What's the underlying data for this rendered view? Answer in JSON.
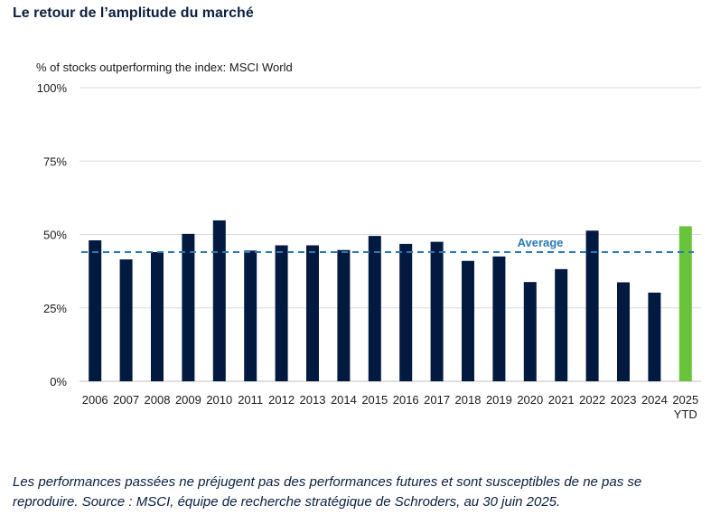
{
  "title": "Le retour de l’amplitude du marché",
  "footnote": "Les performances passées ne préjugent pas des performances futures et sont susceptibles de ne pas se reproduire. Source : MSCI, équipe de recherche stratégique de Schroders, au 30 juin 2025.",
  "chart_data": {
    "type": "bar",
    "ylabel": "% of stocks outperforming the index: MSCI World",
    "ylim": [
      0,
      100
    ],
    "yticks": [
      0,
      25,
      50,
      75,
      100
    ],
    "ytick_labels": [
      "0%",
      "25%",
      "50%",
      "75%",
      "100%"
    ],
    "grid": true,
    "categories": [
      {
        "line1": "2006",
        "line2": ""
      },
      {
        "line1": "2007",
        "line2": ""
      },
      {
        "line1": "2008",
        "line2": ""
      },
      {
        "line1": "2009",
        "line2": ""
      },
      {
        "line1": "2010",
        "line2": ""
      },
      {
        "line1": "2011",
        "line2": ""
      },
      {
        "line1": "2012",
        "line2": ""
      },
      {
        "line1": "2013",
        "line2": ""
      },
      {
        "line1": "2014",
        "line2": ""
      },
      {
        "line1": "2015",
        "line2": ""
      },
      {
        "line1": "2016",
        "line2": ""
      },
      {
        "line1": "2017",
        "line2": ""
      },
      {
        "line1": "2018",
        "line2": ""
      },
      {
        "line1": "2019",
        "line2": ""
      },
      {
        "line1": "2020",
        "line2": ""
      },
      {
        "line1": "2021",
        "line2": ""
      },
      {
        "line1": "2022",
        "line2": ""
      },
      {
        "line1": "2023",
        "line2": ""
      },
      {
        "line1": "2024",
        "line2": ""
      },
      {
        "line1": "2025",
        "line2": "YTD"
      }
    ],
    "values": [
      48,
      41.5,
      44,
      50.2,
      54.8,
      44.5,
      46.3,
      46.3,
      44.7,
      49.5,
      46.8,
      47.5,
      41,
      42.5,
      33.8,
      38.2,
      51.3,
      33.7,
      30.2,
      52.8
    ],
    "highlight_index": 19,
    "average": {
      "value": 44,
      "label": "Average"
    },
    "colors": {
      "bar": "#021a40",
      "highlight": "#69c43c",
      "average": "#2a7ab5",
      "grid": "#d9d9d9",
      "text": "#1a1a1a"
    }
  }
}
